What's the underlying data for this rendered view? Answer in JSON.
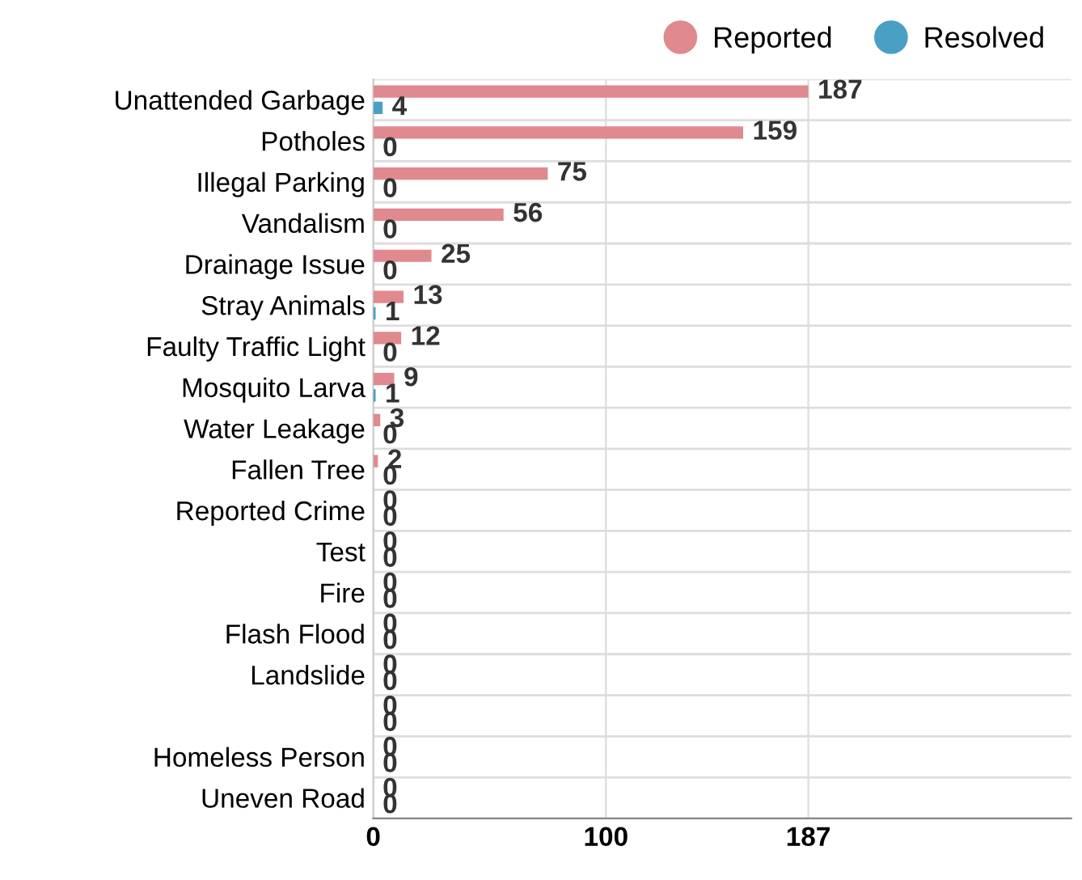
{
  "chart_data": {
    "type": "bar",
    "orientation": "horizontal",
    "categories": [
      "Unattended Garbage",
      "Potholes",
      "Illegal Parking",
      "Vandalism",
      "Drainage Issue",
      "Stray Animals",
      "Faulty Traffic Light",
      "Mosquito Larva",
      "Water Leakage",
      "Fallen Tree",
      "Reported Crime",
      "Test",
      "Fire",
      "Flash Flood",
      "Landslide",
      null,
      "Homeless Person",
      "Uneven Road"
    ],
    "series": [
      {
        "name": "Reported",
        "color": "#e0898e",
        "values": [
          187,
          159,
          75,
          56,
          25,
          13,
          12,
          9,
          3,
          2,
          0,
          0,
          0,
          0,
          0,
          0,
          0,
          0
        ]
      },
      {
        "name": "Resolved",
        "color": "#4a9fc4",
        "values": [
          4,
          0,
          0,
          0,
          0,
          1,
          0,
          1,
          0,
          0,
          0,
          0,
          0,
          0,
          0,
          0,
          0,
          0
        ]
      }
    ],
    "xlim": [
      0,
      300
    ],
    "xticks": [
      0,
      100,
      187
    ],
    "grid": true,
    "legend": "top right",
    "data_labels": true
  }
}
